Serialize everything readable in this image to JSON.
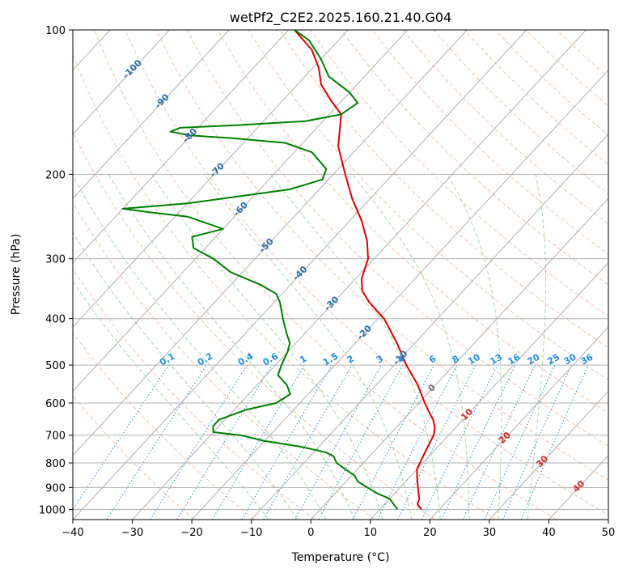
{
  "chart_data": {
    "type": "line",
    "subtype": "skew-t log-p diagram",
    "title": "wetPf2_C2E2.2025.160.21.40.G04",
    "xlabel": "Temperature (°C)",
    "ylabel": "Pressure (hPa)",
    "xlim": [
      -40,
      50
    ],
    "ylim": [
      1050,
      100
    ],
    "y_scale": "log",
    "x_ticks": [
      -40,
      -30,
      -20,
      -10,
      0,
      10,
      20,
      30,
      40,
      50
    ],
    "y_ticks": [
      1000,
      900,
      800,
      700,
      600,
      500,
      400,
      300,
      200,
      100
    ],
    "grid": true,
    "colors": {
      "temperature": "#e00000",
      "dewpoint": "#008000",
      "isotherm": "#b0b0b0",
      "dry_adiabat": "#f4a582",
      "moist_adiabat": "#8fcf8f",
      "mixing_ratio": "#1f8fe6",
      "label_blue": "#2a6ead",
      "label_red": "#d62728",
      "label_gray": "#707070"
    },
    "isotherm_labels": [
      "-100",
      "-90",
      "-80",
      "-70",
      "-60",
      "-50",
      "-40",
      "-30",
      "-20",
      "-10",
      "0",
      "10",
      "20",
      "30",
      "40"
    ],
    "mixing_ratio_labels": [
      "0.1",
      "0.2",
      "0.4",
      "0.6",
      "1",
      "1.5",
      "2",
      "3",
      "4",
      "6",
      "8",
      "10",
      "13",
      "16",
      "20",
      "25",
      "30",
      "36"
    ],
    "series": [
      {
        "role": "temperature",
        "points": [
          [
            1000,
            17.0
          ],
          [
            975,
            15.5
          ],
          [
            950,
            15.0
          ],
          [
            925,
            14.0
          ],
          [
            900,
            13.0
          ],
          [
            875,
            12.0
          ],
          [
            850,
            11.0
          ],
          [
            825,
            10.0
          ],
          [
            800,
            9.5
          ],
          [
            775,
            9.0
          ],
          [
            750,
            8.5
          ],
          [
            725,
            8.0
          ],
          [
            700,
            7.5
          ],
          [
            675,
            6.5
          ],
          [
            650,
            5.0
          ],
          [
            625,
            3.0
          ],
          [
            600,
            1.0
          ],
          [
            550,
            -3.0
          ],
          [
            500,
            -8.0
          ],
          [
            450,
            -13.0
          ],
          [
            400,
            -19.0
          ],
          [
            370,
            -24.0
          ],
          [
            350,
            -27.0
          ],
          [
            330,
            -29.0
          ],
          [
            300,
            -31.0
          ],
          [
            275,
            -34.0
          ],
          [
            250,
            -38.0
          ],
          [
            225,
            -43.0
          ],
          [
            200,
            -48.0
          ],
          [
            175,
            -53.5
          ],
          [
            150,
            -58.0
          ],
          [
            140,
            -62.0
          ],
          [
            130,
            -66.0
          ],
          [
            120,
            -69.0
          ],
          [
            110,
            -73.0
          ],
          [
            100,
            -79.0
          ]
        ]
      },
      {
        "role": "dewpoint",
        "points": [
          [
            1000,
            13.0
          ],
          [
            975,
            11.5
          ],
          [
            950,
            10.0
          ],
          [
            925,
            7.0
          ],
          [
            900,
            4.5
          ],
          [
            875,
            2.0
          ],
          [
            850,
            0.5
          ],
          [
            825,
            -2.0
          ],
          [
            800,
            -4.5
          ],
          [
            775,
            -6.0
          ],
          [
            760,
            -8.0
          ],
          [
            740,
            -13.0
          ],
          [
            720,
            -20.0
          ],
          [
            700,
            -25.0
          ],
          [
            690,
            -30.0
          ],
          [
            670,
            -31.0
          ],
          [
            650,
            -31.0
          ],
          [
            620,
            -28.0
          ],
          [
            600,
            -24.0
          ],
          [
            575,
            -23.0
          ],
          [
            550,
            -25.0
          ],
          [
            525,
            -28.0
          ],
          [
            500,
            -29.0
          ],
          [
            470,
            -30.0
          ],
          [
            450,
            -31.0
          ],
          [
            430,
            -33.0
          ],
          [
            400,
            -36.0
          ],
          [
            370,
            -39.0
          ],
          [
            355,
            -41.0
          ],
          [
            340,
            -45.0
          ],
          [
            320,
            -52.0
          ],
          [
            300,
            -57.0
          ],
          [
            285,
            -62.0
          ],
          [
            270,
            -64.0
          ],
          [
            260,
            -60.0
          ],
          [
            245,
            -68.0
          ],
          [
            240,
            -75.0
          ],
          [
            236,
            -80.0
          ],
          [
            230,
            -70.0
          ],
          [
            215,
            -55.0
          ],
          [
            205,
            -51.0
          ],
          [
            195,
            -52.0
          ],
          [
            180,
            -57.0
          ],
          [
            172,
            -63.0
          ],
          [
            168,
            -73.0
          ],
          [
            166,
            -80.0
          ],
          [
            163,
            -84.0
          ],
          [
            160,
            -83.0
          ],
          [
            158,
            -74.0
          ],
          [
            155,
            -63.0
          ],
          [
            150,
            -58.0
          ],
          [
            142,
            -57.0
          ],
          [
            135,
            -60.0
          ],
          [
            125,
            -66.0
          ],
          [
            115,
            -70.0
          ],
          [
            105,
            -75.0
          ],
          [
            100,
            -79.0
          ]
        ]
      }
    ]
  }
}
